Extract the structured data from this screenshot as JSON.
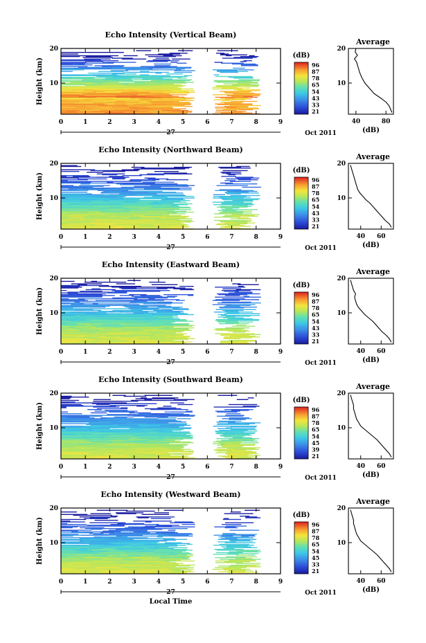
{
  "chart_data": [
    {
      "type": "heatmap",
      "title": "Echo Intensity (Vertical Beam)",
      "ylabel": "Height (km)",
      "xlim": [
        0,
        9
      ],
      "ylim": [
        1,
        20
      ],
      "x_ticks": [
        "0",
        "1",
        "2",
        "3",
        "4",
        "5",
        "6",
        "7",
        "8",
        "9"
      ],
      "y_ticks": [
        {
          "value": 10,
          "label": "10"
        },
        {
          "value": 20,
          "label": "20"
        }
      ],
      "date_label": "27",
      "month_label": "Oct 2011",
      "data_gaps": [
        [
          5.5,
          6.2
        ],
        [
          8.2,
          9.0
        ]
      ],
      "colorbar": {
        "unit": "(dB)",
        "labels": [
          "96",
          "87",
          "78",
          "65",
          "54",
          "43",
          "33",
          "21"
        ],
        "range": [
          21,
          96
        ]
      },
      "grid": false,
      "average_profile": {
        "title": "Average",
        "xlabel": "(dB)",
        "x_ticks": [
          "40",
          "80"
        ],
        "xlim": [
          30,
          90
        ],
        "ylim": [
          1,
          20
        ],
        "y_ticks": [
          "10",
          "20"
        ],
        "profile": [
          [
            88,
            1.5
          ],
          [
            86,
            2.5
          ],
          [
            84,
            3.5
          ],
          [
            80,
            4.5
          ],
          [
            74,
            5.5
          ],
          [
            64,
            7
          ],
          [
            58,
            8.5
          ],
          [
            52,
            10
          ],
          [
            48,
            11.5
          ],
          [
            45,
            13
          ],
          [
            43,
            14.5
          ],
          [
            41,
            16
          ],
          [
            38,
            17
          ],
          [
            42,
            18
          ],
          [
            39,
            19
          ],
          [
            40,
            20
          ]
        ]
      }
    },
    {
      "type": "heatmap",
      "title": "Echo Intensity (Northward Beam)",
      "ylabel": "Height (km)",
      "xlim": [
        0,
        9
      ],
      "ylim": [
        1,
        20
      ],
      "x_ticks": [
        "0",
        "1",
        "2",
        "3",
        "4",
        "5",
        "6",
        "7",
        "8",
        "9"
      ],
      "y_ticks": [
        {
          "value": 10,
          "label": "10"
        },
        {
          "value": 20,
          "label": "20"
        }
      ],
      "date_label": "27",
      "month_label": "Oct 2011",
      "data_gaps": [
        [
          5.5,
          6.2
        ],
        [
          8.2,
          9.0
        ]
      ],
      "colorbar": {
        "unit": "(dB)",
        "labels": [
          "96",
          "87",
          "78",
          "65",
          "54",
          "43",
          "33",
          "21"
        ],
        "range": [
          21,
          96
        ]
      },
      "grid": false,
      "average_profile": {
        "title": "Average",
        "xlabel": "(dB)",
        "x_ticks": [
          "40",
          "60"
        ],
        "xlim": [
          28,
          72
        ],
        "ylim": [
          1,
          20
        ],
        "y_ticks": [
          "10",
          "20"
        ],
        "profile": [
          [
            70,
            1.5
          ],
          [
            68,
            2.5
          ],
          [
            64,
            3.5
          ],
          [
            61,
            4.5
          ],
          [
            58,
            5.5
          ],
          [
            55,
            6.5
          ],
          [
            52,
            7.5
          ],
          [
            49,
            8.5
          ],
          [
            45,
            9.5
          ],
          [
            42,
            10.5
          ],
          [
            39,
            11.5
          ],
          [
            37,
            12.5
          ],
          [
            36,
            13.5
          ],
          [
            35,
            14.5
          ],
          [
            34,
            15.5
          ],
          [
            33,
            16.5
          ],
          [
            32,
            17.5
          ],
          [
            31,
            18.5
          ],
          [
            30,
            19.5
          ]
        ]
      }
    },
    {
      "type": "heatmap",
      "title": "Echo Intensity (Eastward Beam)",
      "ylabel": "Height (km)",
      "xlim": [
        0,
        9
      ],
      "ylim": [
        1,
        20
      ],
      "x_ticks": [
        "0",
        "1",
        "2",
        "3",
        "4",
        "5",
        "6",
        "7",
        "8",
        "9"
      ],
      "y_ticks": [
        {
          "value": 10,
          "label": "10"
        },
        {
          "value": 20,
          "label": "20"
        }
      ],
      "date_label": "27",
      "month_label": "Oct 2011",
      "data_gaps": [
        [
          5.5,
          6.2
        ],
        [
          8.2,
          9.0
        ]
      ],
      "colorbar": {
        "unit": "(dB)",
        "labels": [
          "96",
          "87",
          "78",
          "65",
          "54",
          "43",
          "33",
          "21"
        ],
        "range": [
          21,
          96
        ]
      },
      "grid": false,
      "average_profile": {
        "title": "Average",
        "xlabel": "(dB)",
        "x_ticks": [
          "40",
          "60"
        ],
        "xlim": [
          28,
          72
        ],
        "ylim": [
          1,
          20
        ],
        "y_ticks": [
          "10",
          "20"
        ],
        "profile": [
          [
            70,
            1.5
          ],
          [
            68,
            2.5
          ],
          [
            65,
            3.5
          ],
          [
            61,
            4.5
          ],
          [
            58,
            5.5
          ],
          [
            55,
            6.5
          ],
          [
            52,
            7.5
          ],
          [
            48,
            8.5
          ],
          [
            44,
            9.5
          ],
          [
            41,
            10.5
          ],
          [
            38,
            11.5
          ],
          [
            36,
            12.5
          ],
          [
            35,
            13.5
          ],
          [
            34,
            14.5
          ],
          [
            35,
            15.5
          ],
          [
            33,
            16.5
          ],
          [
            32,
            17.5
          ],
          [
            31,
            18.5
          ],
          [
            30,
            19.5
          ]
        ]
      }
    },
    {
      "type": "heatmap",
      "title": "Echo Intensity (Southward Beam)",
      "ylabel": "Height (km)",
      "xlim": [
        0,
        9
      ],
      "ylim": [
        1,
        20
      ],
      "x_ticks": [
        "0",
        "1",
        "2",
        "3",
        "4",
        "5",
        "6",
        "7",
        "8",
        "9"
      ],
      "y_ticks": [
        {
          "value": 10,
          "label": "10"
        },
        {
          "value": 20,
          "label": "20"
        }
      ],
      "date_label": "27",
      "month_label": "Oct 2011",
      "data_gaps": [
        [
          5.5,
          6.2
        ],
        [
          8.2,
          9.0
        ]
      ],
      "colorbar": {
        "unit": "(dB)",
        "labels": [
          "96",
          "87",
          "78",
          "65",
          "54",
          "45",
          "39",
          "21"
        ],
        "range": [
          21,
          96
        ]
      },
      "grid": false,
      "average_profile": {
        "title": "Average",
        "xlabel": "(dB)",
        "x_ticks": [
          "40",
          "60"
        ],
        "xlim": [
          28,
          72
        ],
        "ylim": [
          1,
          20
        ],
        "y_ticks": [
          "10",
          "20"
        ],
        "profile": [
          [
            70,
            1.5
          ],
          [
            68,
            2.5
          ],
          [
            65,
            3.5
          ],
          [
            62,
            4.5
          ],
          [
            59,
            5.5
          ],
          [
            56,
            6.5
          ],
          [
            52,
            7.5
          ],
          [
            48,
            8.5
          ],
          [
            44,
            9.5
          ],
          [
            40,
            10.5
          ],
          [
            38,
            11.5
          ],
          [
            36,
            12.5
          ],
          [
            35,
            13.5
          ],
          [
            34,
            14.5
          ],
          [
            33,
            15.5
          ],
          [
            33,
            16.5
          ],
          [
            32,
            17.5
          ],
          [
            31,
            18.5
          ],
          [
            30,
            19.5
          ]
        ]
      }
    },
    {
      "type": "heatmap",
      "title": "Echo Intensity (Westward Beam)",
      "ylabel": "Height (km)",
      "xlabel": "Local Time",
      "xlim": [
        0,
        9
      ],
      "ylim": [
        1,
        20
      ],
      "x_ticks": [
        "0",
        "1",
        "2",
        "3",
        "4",
        "5",
        "6",
        "7",
        "8",
        "9"
      ],
      "y_ticks": [
        {
          "value": 10,
          "label": "10"
        },
        {
          "value": 20,
          "label": "20"
        }
      ],
      "date_label": "27",
      "month_label": "Oct 2011",
      "data_gaps": [
        [
          5.5,
          6.2
        ],
        [
          8.2,
          9.0
        ]
      ],
      "colorbar": {
        "unit": "(dB)",
        "labels": [
          "96",
          "87",
          "78",
          "65",
          "54",
          "45",
          "33",
          "21"
        ],
        "range": [
          21,
          96
        ]
      },
      "grid": false,
      "average_profile": {
        "title": "Average",
        "xlabel": "(dB)",
        "x_ticks": [
          "40",
          "60"
        ],
        "xlim": [
          28,
          72
        ],
        "ylim": [
          1,
          20
        ],
        "y_ticks": [
          "10",
          "20"
        ],
        "profile": [
          [
            70,
            1.5
          ],
          [
            68,
            2.5
          ],
          [
            65,
            3.5
          ],
          [
            62,
            4.5
          ],
          [
            59,
            5.5
          ],
          [
            56,
            6.5
          ],
          [
            52,
            7.5
          ],
          [
            48,
            8.5
          ],
          [
            44,
            9.5
          ],
          [
            40,
            10.5
          ],
          [
            38,
            11.5
          ],
          [
            36,
            12.5
          ],
          [
            35,
            13.5
          ],
          [
            34,
            14.5
          ],
          [
            33,
            15.5
          ],
          [
            33,
            16.5
          ],
          [
            32,
            17.5
          ],
          [
            31,
            18.5
          ],
          [
            30,
            19.5
          ]
        ]
      }
    }
  ]
}
